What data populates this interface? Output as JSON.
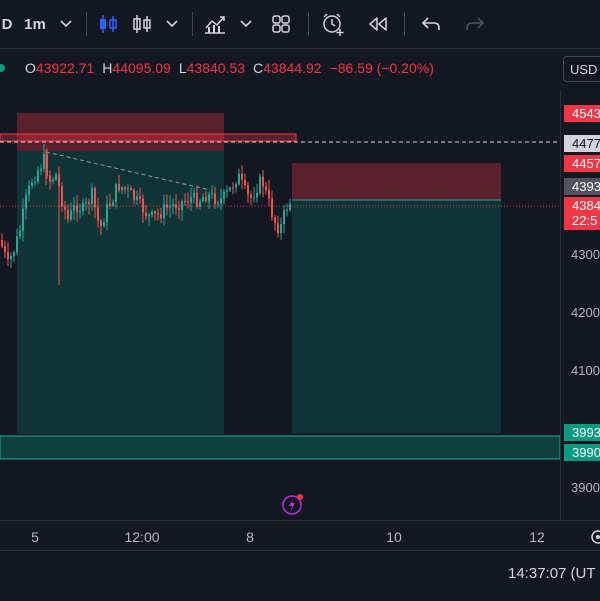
{
  "toolbar": {
    "symbol_fragment": "D",
    "interval": "1m",
    "undo_icon": "undo-icon",
    "redo_icon": "redo-icon"
  },
  "ohlc": {
    "o_label": "O",
    "o_value": "43922.71",
    "h_label": "H",
    "h_value": "44095.09",
    "l_label": "L",
    "l_value": "43840.53",
    "c_label": "C",
    "c_value": "43844.92",
    "change": "−86.59 (−0.20%)"
  },
  "currency_button": "USD",
  "price_scale": {
    "labels": [
      "4300",
      "4200",
      "4100",
      "3900"
    ],
    "badges": {
      "b1": "4543",
      "b2": "4477",
      "b3": "4457",
      "b4": "4393",
      "b5_price": "4384",
      "b5_timer": "22:5",
      "b6": "3993",
      "b7": "3990"
    }
  },
  "time_axis": {
    "labels": [
      "5",
      "12:00",
      "8",
      "10",
      "12"
    ]
  },
  "bottom": {
    "clock": "14:37:07 (UT"
  },
  "colors": {
    "background": "#131722",
    "up": "#26a69a",
    "down": "#ef5350",
    "accent_blue": "#2962ff",
    "stop_zone": "#f23645",
    "profit_zone": "#089981"
  }
}
